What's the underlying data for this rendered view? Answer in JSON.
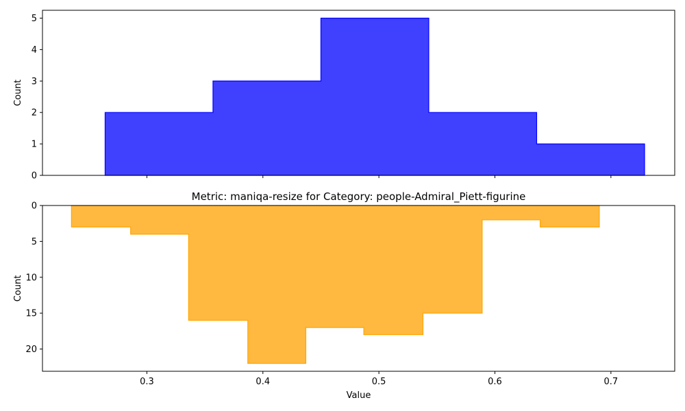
{
  "chart_data": [
    {
      "type": "histogram",
      "panel": "top",
      "title": "",
      "xlabel": "",
      "ylabel": "Count",
      "xlim": [
        0.21,
        0.755
      ],
      "ylim": [
        0,
        5.25
      ],
      "x_ticks_shown": false,
      "y_ticks": [
        0,
        1,
        2,
        3,
        4,
        5
      ],
      "y_inverted": false,
      "bins": [
        {
          "x0": 0.264,
          "x1": 0.357,
          "count": 2
        },
        {
          "x0": 0.357,
          "x1": 0.45,
          "count": 3
        },
        {
          "x0": 0.45,
          "x1": 0.543,
          "count": 5
        },
        {
          "x0": 0.543,
          "x1": 0.636,
          "count": 2
        },
        {
          "x0": 0.636,
          "x1": 0.729,
          "count": 1
        }
      ],
      "fill_color": "#4040ff",
      "edge_color": "#0000ff"
    },
    {
      "type": "histogram",
      "panel": "bottom",
      "title": "Metric: maniqa-resize for Category: people-Admiral_Piett-figurine",
      "xlabel": "Value",
      "ylabel": "Count",
      "xlim": [
        0.21,
        0.755
      ],
      "ylim": [
        0,
        23.1
      ],
      "x_ticks": [
        0.3,
        0.4,
        0.5,
        0.6,
        0.7
      ],
      "y_ticks": [
        0,
        5,
        10,
        15,
        20
      ],
      "y_inverted": true,
      "bins": [
        {
          "x0": 0.235,
          "x1": 0.286,
          "count": 3
        },
        {
          "x0": 0.286,
          "x1": 0.336,
          "count": 4
        },
        {
          "x0": 0.336,
          "x1": 0.387,
          "count": 16
        },
        {
          "x0": 0.387,
          "x1": 0.437,
          "count": 22
        },
        {
          "x0": 0.437,
          "x1": 0.487,
          "count": 17
        },
        {
          "x0": 0.487,
          "x1": 0.538,
          "count": 18
        },
        {
          "x0": 0.538,
          "x1": 0.589,
          "count": 15
        },
        {
          "x0": 0.589,
          "x1": 0.639,
          "count": 2
        },
        {
          "x0": 0.639,
          "x1": 0.69,
          "count": 3
        }
      ],
      "fill_color": "#ffb940",
      "edge_color": "#ffa500"
    }
  ]
}
